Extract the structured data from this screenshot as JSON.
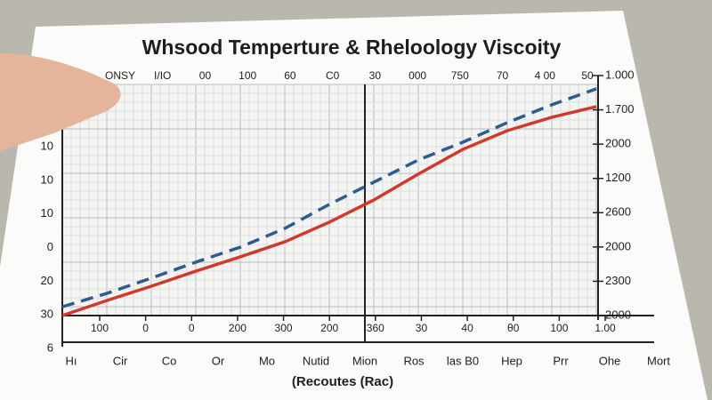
{
  "chart_data": {
    "type": "line",
    "title": "Whsood Temperture & Rheloology Viscoity",
    "x_label": "(Recoutes (Rac)",
    "categories": [
      "Hı",
      "Cir",
      "Co",
      "Or",
      "Mo",
      "Nutid",
      "Mion",
      "Ros",
      "las B0",
      "Hep",
      "Prr",
      "Ohe",
      "Mort"
    ],
    "top_labels": [
      "ONSY",
      "I/IO",
      "00",
      "100",
      "60",
      "C0",
      "30",
      "000",
      "750",
      "70",
      "4 00",
      "50"
    ],
    "bottom_labels": [
      "100",
      "0",
      "0",
      "200",
      "300",
      "200",
      "360",
      "30",
      "40",
      "θ0",
      "100",
      "1.00"
    ],
    "left_labels": [
      "10",
      "10",
      "10",
      "0",
      "20",
      "30",
      "6"
    ],
    "right_labels": [
      "1.000",
      "1.700",
      "2000",
      "1200",
      "2600",
      "2000",
      "2300",
      "2000"
    ],
    "ylim": [
      0,
      100
    ],
    "series": [
      {
        "color": "#d0392b",
        "dash": false,
        "values": [
          0,
          6.5,
          12.7,
          19.2,
          25.4,
          31.9,
          40.4,
          50,
          61.2,
          71.9,
          80,
          85.8,
          90.4
        ]
      },
      {
        "color": "#2e5c91",
        "dash": true,
        "values": [
          3.8,
          9.6,
          16.2,
          23.1,
          29.6,
          37.7,
          48.1,
          57.7,
          67.3,
          75,
          83.5,
          91.2,
          98.1
        ]
      }
    ]
  }
}
